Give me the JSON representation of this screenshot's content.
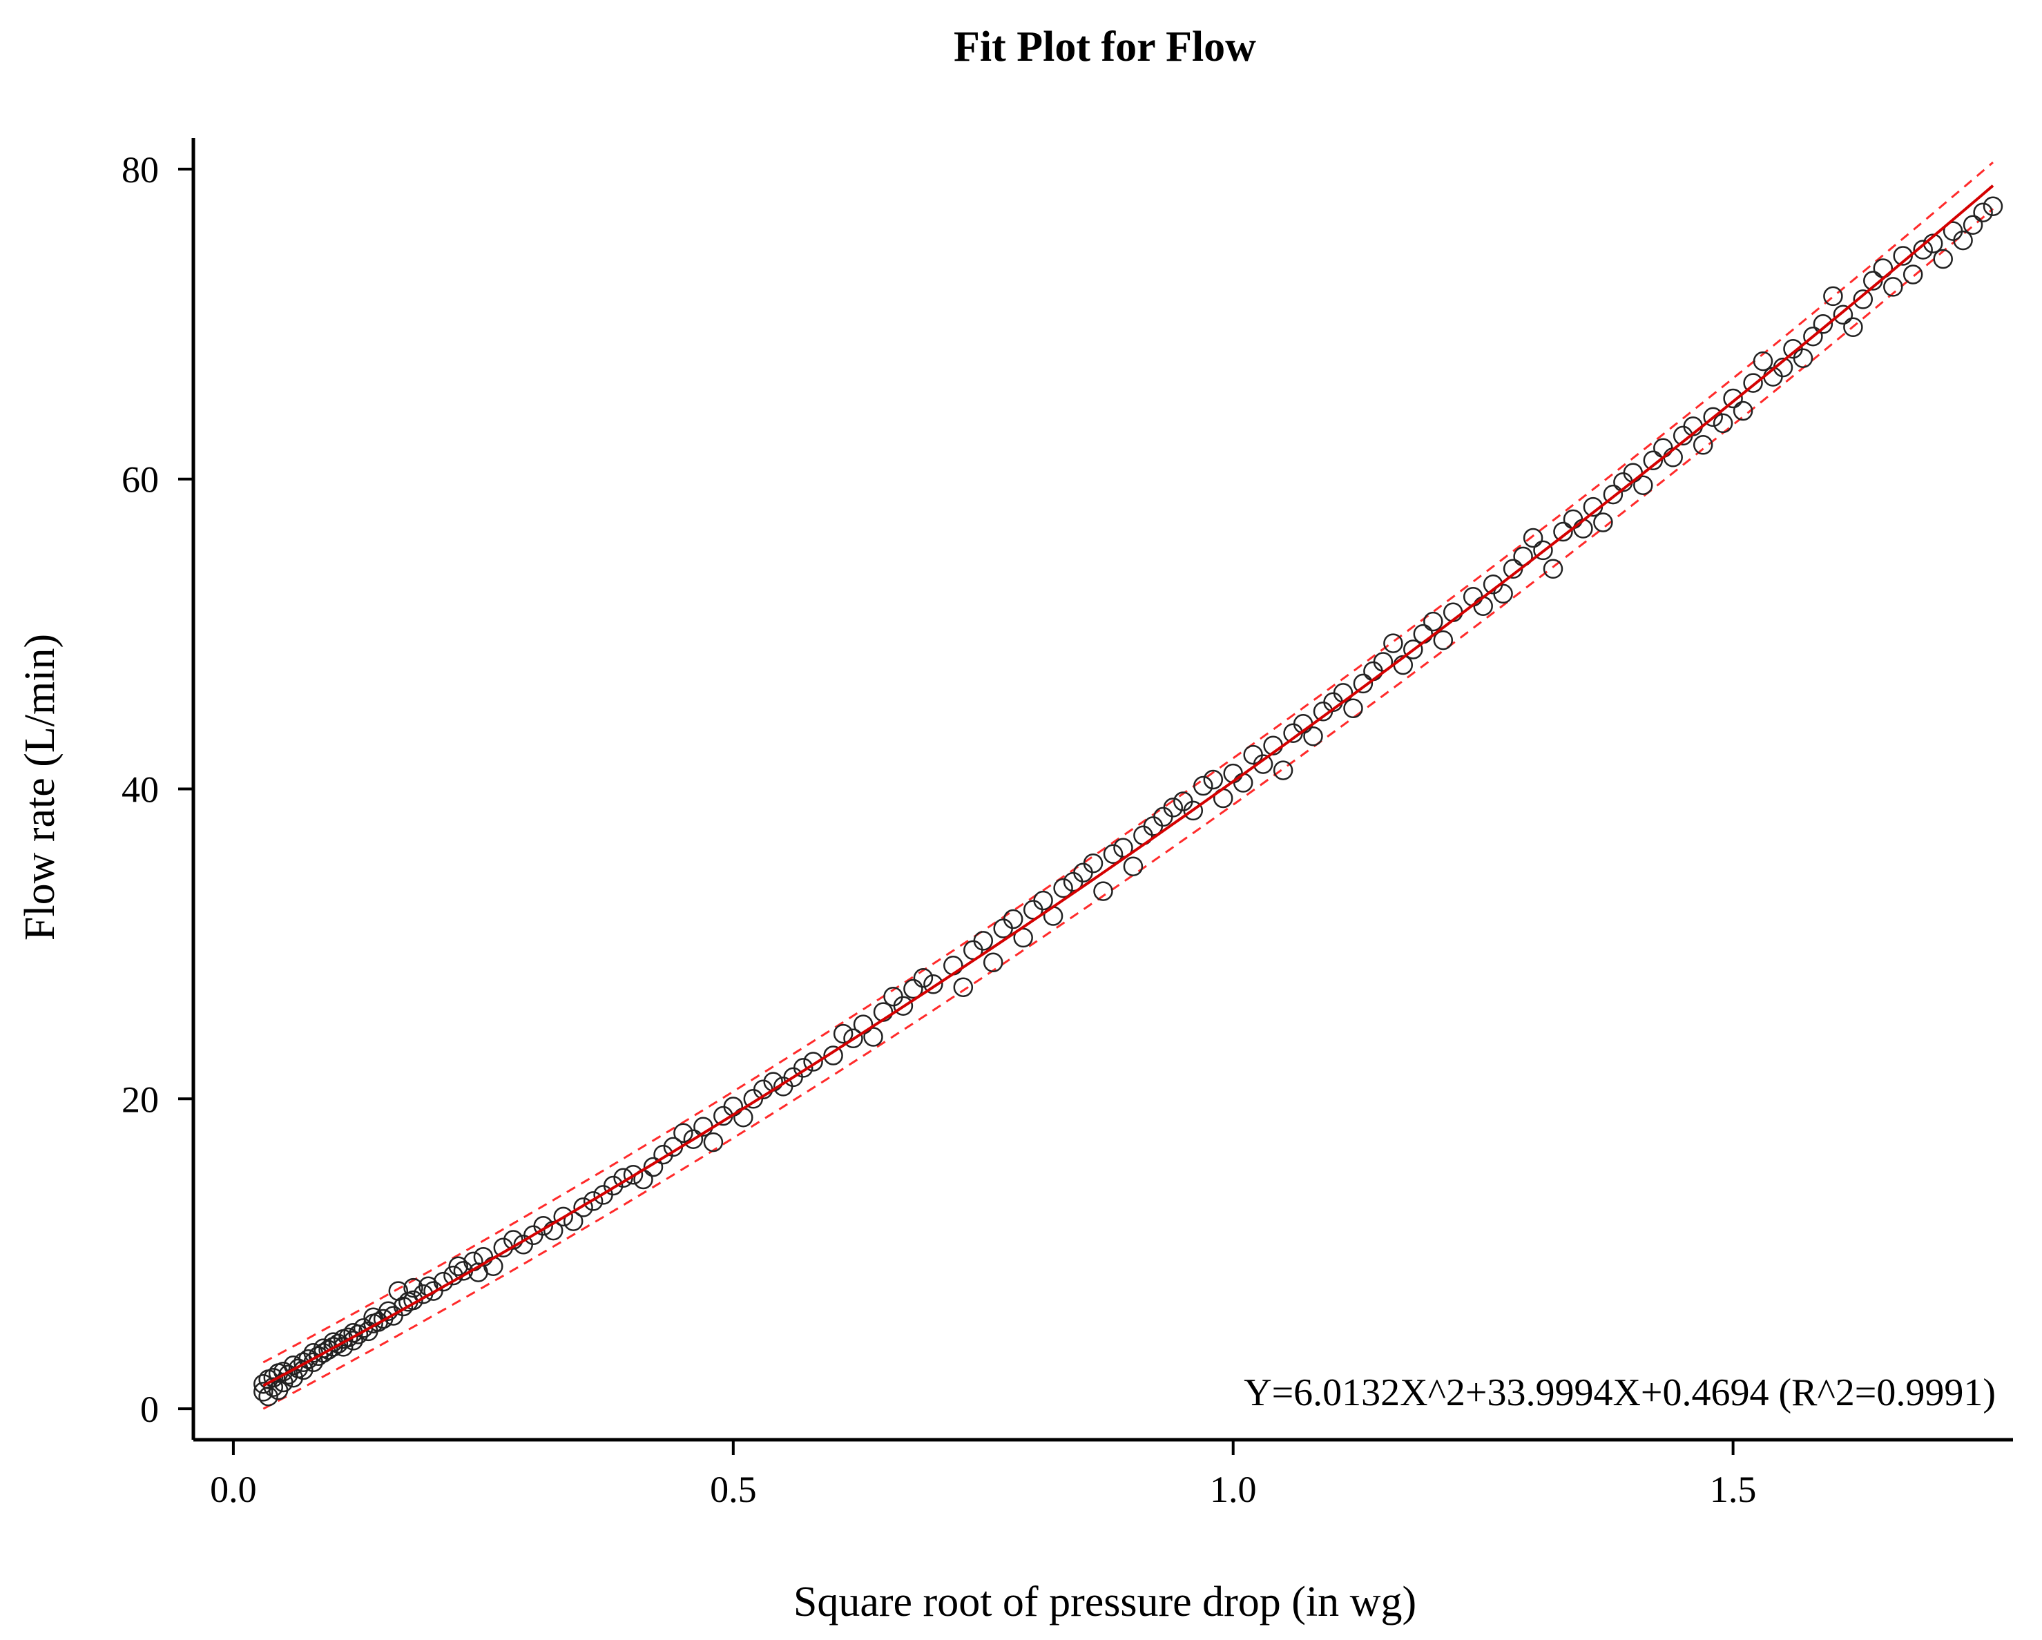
{
  "chart_data": {
    "type": "scatter",
    "title": "Fit Plot for Flow",
    "xlabel": "Square root of pressure drop (in wg)",
    "ylabel": "Flow rate  (L/min)",
    "xlim": [
      -0.04,
      1.78
    ],
    "ylim": [
      -2,
      82
    ],
    "x_ticks": [
      0.0,
      0.5,
      1.0,
      1.5
    ],
    "x_tick_labels": [
      "0.0",
      "0.5",
      "1.0",
      "1.5"
    ],
    "y_ticks": [
      0,
      20,
      40,
      60,
      80
    ],
    "y_tick_labels": [
      "0",
      "20",
      "40",
      "60",
      "80"
    ],
    "grid": false,
    "fit_equation": "Y=6.0132X^2+33.9994X+0.4694 (R^2=0.9991)",
    "fit": {
      "a": 6.0132,
      "b": 33.9994,
      "c": 0.4694,
      "x_range": [
        0.03,
        1.76
      ],
      "band_halfwidth": 1.5
    },
    "colors": {
      "points": "#222222",
      "fit_line": "#d40000",
      "band": "#ff2a2a",
      "axes": "#000000"
    },
    "series": [
      {
        "values": [
          [
            0.03,
            1.1
          ],
          [
            0.03,
            1.6
          ],
          [
            0.035,
            0.8
          ],
          [
            0.035,
            1.9
          ],
          [
            0.04,
            1.4
          ],
          [
            0.04,
            2.0
          ],
          [
            0.045,
            1.2
          ],
          [
            0.045,
            2.3
          ],
          [
            0.05,
            1.7
          ],
          [
            0.05,
            2.4
          ],
          [
            0.055,
            2.2
          ],
          [
            0.06,
            2.0
          ],
          [
            0.06,
            2.8
          ],
          [
            0.065,
            2.6
          ],
          [
            0.07,
            3.0
          ],
          [
            0.07,
            2.5
          ],
          [
            0.075,
            3.2
          ],
          [
            0.08,
            3.0
          ],
          [
            0.08,
            3.6
          ],
          [
            0.085,
            3.4
          ],
          [
            0.09,
            3.6
          ],
          [
            0.09,
            3.9
          ],
          [
            0.095,
            3.8
          ],
          [
            0.1,
            4.0
          ],
          [
            0.1,
            4.3
          ],
          [
            0.105,
            4.2
          ],
          [
            0.11,
            4.5
          ],
          [
            0.11,
            4.0
          ],
          [
            0.115,
            4.6
          ],
          [
            0.12,
            4.9
          ],
          [
            0.12,
            4.4
          ],
          [
            0.125,
            4.8
          ],
          [
            0.13,
            5.2
          ],
          [
            0.135,
            5.0
          ],
          [
            0.14,
            5.5
          ],
          [
            0.14,
            5.9
          ],
          [
            0.145,
            5.6
          ],
          [
            0.15,
            5.8
          ],
          [
            0.155,
            6.3
          ],
          [
            0.16,
            6.0
          ],
          [
            0.165,
            7.6
          ],
          [
            0.17,
            6.6
          ],
          [
            0.175,
            6.9
          ],
          [
            0.18,
            7.0
          ],
          [
            0.18,
            7.8
          ],
          [
            0.19,
            7.4
          ],
          [
            0.195,
            7.9
          ],
          [
            0.2,
            7.6
          ],
          [
            0.21,
            8.2
          ],
          [
            0.22,
            8.6
          ],
          [
            0.225,
            9.2
          ],
          [
            0.23,
            8.9
          ],
          [
            0.24,
            9.5
          ],
          [
            0.245,
            8.8
          ],
          [
            0.25,
            9.8
          ],
          [
            0.26,
            9.2
          ],
          [
            0.27,
            10.4
          ],
          [
            0.28,
            10.9
          ],
          [
            0.29,
            10.6
          ],
          [
            0.3,
            11.2
          ],
          [
            0.31,
            11.8
          ],
          [
            0.32,
            11.5
          ],
          [
            0.33,
            12.4
          ],
          [
            0.34,
            12.1
          ],
          [
            0.35,
            13.0
          ],
          [
            0.36,
            13.4
          ],
          [
            0.37,
            13.8
          ],
          [
            0.38,
            14.4
          ],
          [
            0.39,
            14.9
          ],
          [
            0.4,
            15.1
          ],
          [
            0.41,
            14.8
          ],
          [
            0.42,
            15.6
          ],
          [
            0.43,
            16.4
          ],
          [
            0.44,
            16.9
          ],
          [
            0.45,
            17.8
          ],
          [
            0.46,
            17.4
          ],
          [
            0.47,
            18.2
          ],
          [
            0.48,
            17.2
          ],
          [
            0.49,
            18.9
          ],
          [
            0.5,
            19.5
          ],
          [
            0.51,
            18.8
          ],
          [
            0.52,
            20.0
          ],
          [
            0.53,
            20.6
          ],
          [
            0.54,
            21.1
          ],
          [
            0.55,
            20.8
          ],
          [
            0.56,
            21.4
          ],
          [
            0.57,
            22.0
          ],
          [
            0.58,
            22.4
          ],
          [
            0.6,
            22.8
          ],
          [
            0.61,
            24.2
          ],
          [
            0.62,
            23.9
          ],
          [
            0.63,
            24.8
          ],
          [
            0.64,
            24.0
          ],
          [
            0.65,
            25.6
          ],
          [
            0.66,
            26.6
          ],
          [
            0.67,
            26.0
          ],
          [
            0.68,
            27.1
          ],
          [
            0.69,
            27.8
          ],
          [
            0.7,
            27.4
          ],
          [
            0.72,
            28.6
          ],
          [
            0.73,
            27.2
          ],
          [
            0.74,
            29.6
          ],
          [
            0.75,
            30.2
          ],
          [
            0.76,
            28.8
          ],
          [
            0.77,
            31.0
          ],
          [
            0.78,
            31.6
          ],
          [
            0.79,
            30.4
          ],
          [
            0.8,
            32.2
          ],
          [
            0.81,
            32.8
          ],
          [
            0.82,
            31.8
          ],
          [
            0.83,
            33.6
          ],
          [
            0.84,
            34.0
          ],
          [
            0.85,
            34.6
          ],
          [
            0.86,
            35.2
          ],
          [
            0.87,
            33.4
          ],
          [
            0.88,
            35.8
          ],
          [
            0.89,
            36.2
          ],
          [
            0.9,
            35.0
          ],
          [
            0.91,
            37.0
          ],
          [
            0.92,
            37.6
          ],
          [
            0.93,
            38.2
          ],
          [
            0.94,
            38.8
          ],
          [
            0.95,
            39.2
          ],
          [
            0.96,
            38.6
          ],
          [
            0.97,
            40.2
          ],
          [
            0.98,
            40.6
          ],
          [
            0.99,
            39.4
          ],
          [
            1.0,
            41.0
          ],
          [
            1.01,
            40.4
          ],
          [
            1.02,
            42.2
          ],
          [
            1.03,
            41.6
          ],
          [
            1.04,
            42.8
          ],
          [
            1.05,
            41.2
          ],
          [
            1.06,
            43.6
          ],
          [
            1.07,
            44.2
          ],
          [
            1.08,
            43.4
          ],
          [
            1.09,
            45.0
          ],
          [
            1.1,
            45.6
          ],
          [
            1.11,
            46.2
          ],
          [
            1.12,
            45.2
          ],
          [
            1.13,
            46.8
          ],
          [
            1.14,
            47.6
          ],
          [
            1.15,
            48.2
          ],
          [
            1.16,
            49.4
          ],
          [
            1.17,
            48.0
          ],
          [
            1.18,
            49.0
          ],
          [
            1.19,
            50.0
          ],
          [
            1.2,
            50.8
          ],
          [
            1.21,
            49.6
          ],
          [
            1.22,
            51.4
          ],
          [
            1.24,
            52.4
          ],
          [
            1.25,
            51.8
          ],
          [
            1.26,
            53.2
          ],
          [
            1.27,
            52.6
          ],
          [
            1.28,
            54.2
          ],
          [
            1.29,
            55.0
          ],
          [
            1.3,
            56.2
          ],
          [
            1.31,
            55.4
          ],
          [
            1.32,
            54.2
          ],
          [
            1.33,
            56.6
          ],
          [
            1.34,
            57.4
          ],
          [
            1.35,
            56.8
          ],
          [
            1.36,
            58.2
          ],
          [
            1.37,
            57.2
          ],
          [
            1.38,
            59.0
          ],
          [
            1.39,
            59.8
          ],
          [
            1.4,
            60.4
          ],
          [
            1.41,
            59.6
          ],
          [
            1.42,
            61.2
          ],
          [
            1.43,
            62.0
          ],
          [
            1.44,
            61.4
          ],
          [
            1.45,
            62.8
          ],
          [
            1.46,
            63.4
          ],
          [
            1.47,
            62.2
          ],
          [
            1.48,
            64.0
          ],
          [
            1.49,
            63.6
          ],
          [
            1.5,
            65.2
          ],
          [
            1.51,
            64.4
          ],
          [
            1.52,
            66.2
          ],
          [
            1.53,
            67.6
          ],
          [
            1.54,
            66.6
          ],
          [
            1.55,
            67.2
          ],
          [
            1.56,
            68.4
          ],
          [
            1.57,
            67.8
          ],
          [
            1.58,
            69.2
          ],
          [
            1.59,
            70.0
          ],
          [
            1.6,
            71.8
          ],
          [
            1.61,
            70.6
          ],
          [
            1.62,
            69.8
          ],
          [
            1.63,
            71.6
          ],
          [
            1.64,
            72.8
          ],
          [
            1.65,
            73.6
          ],
          [
            1.66,
            72.4
          ],
          [
            1.67,
            74.4
          ],
          [
            1.68,
            73.2
          ],
          [
            1.69,
            74.8
          ],
          [
            1.7,
            75.2
          ],
          [
            1.71,
            74.2
          ],
          [
            1.72,
            76.0
          ],
          [
            1.73,
            75.4
          ],
          [
            1.74,
            76.4
          ],
          [
            1.75,
            77.2
          ],
          [
            1.76,
            77.6
          ]
        ]
      }
    ]
  }
}
